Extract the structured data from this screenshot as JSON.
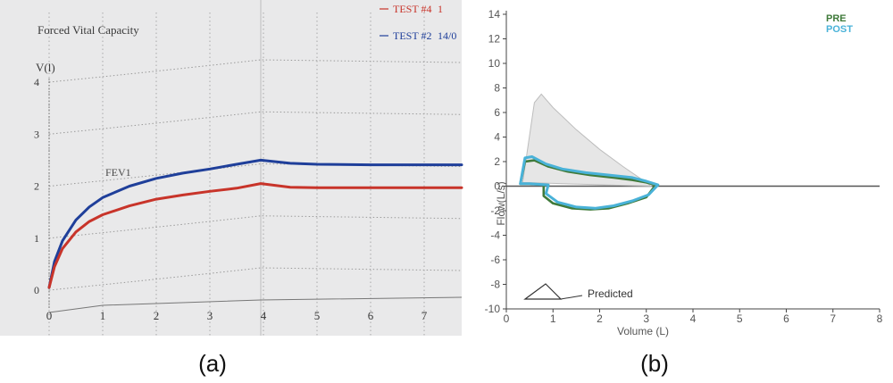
{
  "panels": {
    "a_label": "(a)",
    "b_label": "(b)"
  },
  "chart_data": [
    {
      "type": "line",
      "title": "Forced Vital Capacity",
      "ylabel": "V(l)",
      "xlabel": "",
      "xlim": [
        0,
        7.7
      ],
      "ylim": [
        -0.2,
        4.3
      ],
      "x_ticks": [
        "0",
        "1",
        "2",
        "3",
        "4",
        "5",
        "6",
        "7"
      ],
      "y_ticks": [
        "0",
        "1",
        "2",
        "3",
        "4"
      ],
      "grid": true,
      "legend": {
        "position": "top-right",
        "entries": [
          {
            "label": "TEST #4",
            "extra": "1",
            "color": "#c8342a"
          },
          {
            "label": "TEST #2",
            "extra": "14/0",
            "color": "#1f3f9a"
          }
        ]
      },
      "annotations": [
        {
          "text": "FEV1",
          "x": 1.05,
          "y": 2.2
        }
      ],
      "series": [
        {
          "name": "TEST #2",
          "color": "#1f3f9a",
          "x": [
            0,
            0.1,
            0.25,
            0.5,
            0.75,
            1,
            1.5,
            2,
            2.5,
            3,
            3.5,
            3.95,
            4.5,
            5,
            6,
            7,
            7.7
          ],
          "y": [
            0.05,
            0.55,
            0.95,
            1.35,
            1.6,
            1.78,
            2.0,
            2.15,
            2.25,
            2.33,
            2.42,
            2.5,
            2.44,
            2.42,
            2.41,
            2.41,
            2.41
          ]
        },
        {
          "name": "TEST #4",
          "color": "#c8342a",
          "x": [
            0,
            0.1,
            0.25,
            0.5,
            0.75,
            1,
            1.5,
            2,
            2.5,
            3,
            3.5,
            3.95,
            4.5,
            5,
            6,
            7,
            7.7
          ],
          "y": [
            0.05,
            0.45,
            0.8,
            1.12,
            1.32,
            1.45,
            1.62,
            1.75,
            1.83,
            1.9,
            1.96,
            2.05,
            1.98,
            1.97,
            1.97,
            1.97,
            1.97
          ]
        }
      ]
    },
    {
      "type": "line",
      "title": "",
      "xlabel": "Volume (L)",
      "ylabel": "Flow(L/s)",
      "xlim": [
        0,
        8
      ],
      "ylim": [
        -10,
        14
      ],
      "x_ticks": [
        "0",
        "1",
        "2",
        "3",
        "4",
        "5",
        "6",
        "7",
        "8"
      ],
      "y_ticks": [
        "-10",
        "-8",
        "-6",
        "-4",
        "-2",
        "0",
        "2",
        "4",
        "6",
        "8",
        "10",
        "12",
        "14"
      ],
      "grid": false,
      "legend": {
        "position": "top-right",
        "entries": [
          {
            "label": "PRE",
            "color": "#3f7a3a"
          },
          {
            "label": "POST",
            "color": "#49b2d8"
          }
        ]
      },
      "predicted_label": "Predicted",
      "series": [
        {
          "name": "Predicted",
          "color": "#cfcfcf",
          "x": [
            0.35,
            0.6,
            0.75,
            1.0,
            1.5,
            2.0,
            2.5,
            3.0,
            3.1,
            0.35
          ],
          "y": [
            0.3,
            6.8,
            7.5,
            6.4,
            4.6,
            3.0,
            1.6,
            0.3,
            0,
            0.3
          ]
        },
        {
          "name": "PRE",
          "color": "#3f7a3a",
          "x": [
            0.3,
            0.4,
            0.6,
            0.9,
            1.3,
            1.8,
            2.3,
            2.7,
            3.0,
            3.2,
            3.0,
            2.6,
            2.2,
            1.8,
            1.4,
            1.0,
            0.8,
            0.8,
            0.5,
            0.3
          ],
          "y": [
            0.2,
            2.0,
            2.1,
            1.6,
            1.2,
            0.9,
            0.7,
            0.5,
            0.3,
            0.1,
            -0.9,
            -1.4,
            -1.8,
            -1.9,
            -1.8,
            -1.4,
            -0.8,
            0.1,
            0.2,
            0.2
          ]
        },
        {
          "name": "POST",
          "color": "#49b2d8",
          "x": [
            0.3,
            0.4,
            0.55,
            0.85,
            1.2,
            1.7,
            2.2,
            2.7,
            3.0,
            3.25,
            3.05,
            2.7,
            2.3,
            1.9,
            1.5,
            1.1,
            0.85,
            0.9,
            0.5,
            0.3
          ],
          "y": [
            0.2,
            2.3,
            2.4,
            1.8,
            1.4,
            1.1,
            0.9,
            0.7,
            0.4,
            0.1,
            -0.7,
            -1.2,
            -1.6,
            -1.8,
            -1.7,
            -1.3,
            -0.6,
            0.1,
            0.2,
            0.2
          ]
        }
      ]
    }
  ]
}
